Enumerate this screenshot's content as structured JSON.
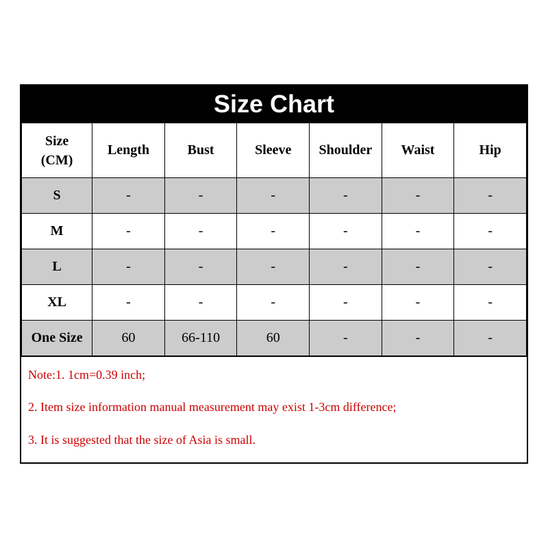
{
  "title": "Size Chart",
  "header": {
    "size_line1": "Size",
    "size_line2": "(CM)",
    "columns": [
      "Length",
      "Bust",
      "Sleeve",
      "Shoulder",
      "Waist",
      "Hip"
    ]
  },
  "rows": [
    {
      "label": "S",
      "values": [
        "-",
        "-",
        "-",
        "-",
        "-",
        "-"
      ],
      "shaded": true
    },
    {
      "label": "M",
      "values": [
        "-",
        "-",
        "-",
        "-",
        "-",
        "-"
      ],
      "shaded": false
    },
    {
      "label": "L",
      "values": [
        "-",
        "-",
        "-",
        "-",
        "-",
        "-"
      ],
      "shaded": true
    },
    {
      "label": "XL",
      "values": [
        "-",
        "-",
        "-",
        "-",
        "-",
        "-"
      ],
      "shaded": false
    },
    {
      "label": "One Size",
      "values": [
        "60",
        "66-110",
        "60",
        "-",
        "-",
        "-"
      ],
      "shaded": true
    }
  ],
  "notes": [
    "Note:1.    1cm=0.39 inch;",
    "2.  Item size information manual measurement may exist 1-3cm difference;",
    "3.  It is suggested that the size of Asia is small."
  ],
  "style": {
    "title_bg": "#000000",
    "title_fg": "#ffffff",
    "title_fontsize": 36,
    "header_bg": "#ffffff",
    "shaded_bg": "#cccccc",
    "unshaded_bg": "#ffffff",
    "border_color": "#000000",
    "note_color": "#cc0000",
    "cell_fontsize": 20,
    "note_fontsize": 18,
    "font_family": "Times New Roman, serif"
  }
}
